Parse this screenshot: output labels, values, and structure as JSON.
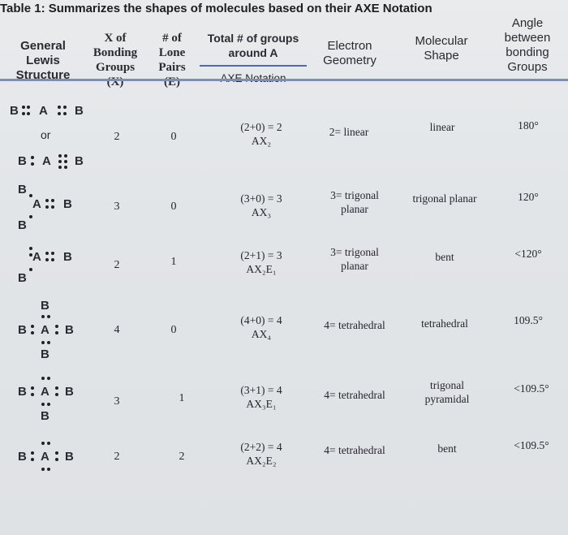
{
  "caption": "Table 1: Summarizes the shapes of molecules based on their AXE Notation",
  "headers": {
    "general": [
      "General",
      "Lewis",
      "Structure"
    ],
    "x_bonding": [
      "X of",
      "Bonding",
      "Groups",
      "(X)"
    ],
    "lone_pairs": [
      "# of",
      "Lone",
      "Pairs",
      "(E)"
    ],
    "total_groups": [
      "Total # of groups",
      "around A"
    ],
    "axe_notation": "AXE Notation",
    "electron_geometry": [
      "Electron",
      "Geometry"
    ],
    "molecular_shape": [
      "Molecular",
      "Shape"
    ],
    "angle": [
      "Angle",
      "between",
      "bonding",
      "Groups"
    ]
  },
  "lewis_labels": {
    "B": "B",
    "A": "A",
    "or": "or"
  },
  "rows": [
    {
      "x": "2",
      "e": "0",
      "total": "(2+0) = 2",
      "axe": "AX₂",
      "egeom": [
        "2= linear"
      ],
      "shape": [
        "linear"
      ],
      "angle": "180°"
    },
    {
      "x": "3",
      "e": "0",
      "total": "(3+0) = 3",
      "axe": "AX₃",
      "egeom": [
        "3= trigonal",
        "planar"
      ],
      "shape": [
        "trigonal planar"
      ],
      "angle": "120°"
    },
    {
      "x": "2",
      "e": "1",
      "total": "(2+1) = 3",
      "axe": "AX₂E₁",
      "egeom": [
        "3= trigonal",
        "planar"
      ],
      "shape": [
        "bent"
      ],
      "angle": "<120°"
    },
    {
      "x": "4",
      "e": "0",
      "total": "(4+0) = 4",
      "axe": "AX₄",
      "egeom": [
        "4= tetrahedral"
      ],
      "shape": [
        "tetrahedral"
      ],
      "angle": "109.5°"
    },
    {
      "x": "3",
      "e": "1",
      "total": "(3+1) = 4",
      "axe": "AX₃E₁",
      "egeom": [
        "4= tetrahedral"
      ],
      "shape": [
        "trigonal",
        "pyramidal"
      ],
      "angle": "<109.5°"
    },
    {
      "x": "2",
      "e": "2",
      "total": "(2+2) = 4",
      "axe": "AX₂E₂",
      "egeom": [
        "4= tetrahedral"
      ],
      "shape": [
        "bent"
      ],
      "angle": "<109.5°"
    }
  ]
}
